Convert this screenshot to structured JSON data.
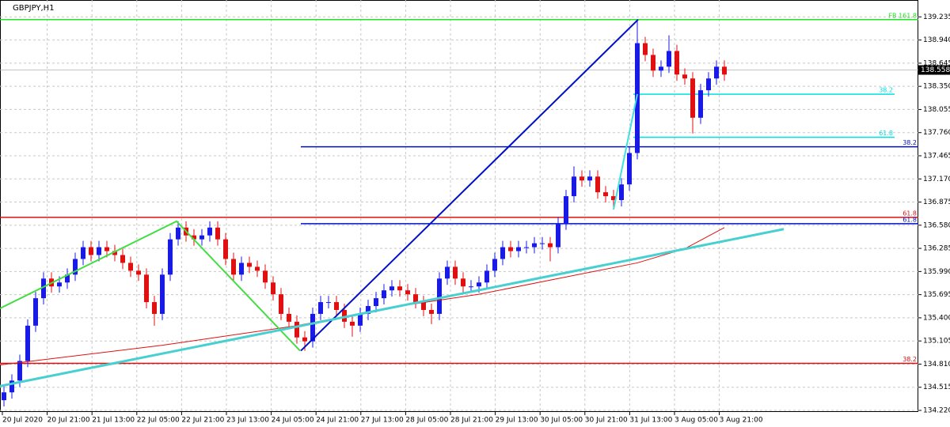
{
  "chart_data": {
    "type": "candlestick",
    "title": "GBPJPY,H1",
    "up_color": "#1a1ae6",
    "down_color": "#e01010",
    "ylim": [
      134.2,
      139.45
    ],
    "xlim": [
      -0.5,
      115.5
    ],
    "yticks": [
      139.235,
      {
        "value": 138.94,
        "label": "138.940"
      },
      138.645,
      {
        "value": 138.35,
        "label": "138.350"
      },
      138.055,
      {
        "value": 137.76,
        "label": "137.760"
      },
      137.465,
      {
        "value": 137.17,
        "label": "137.170"
      },
      136.875,
      {
        "value": 136.58,
        "label": "136.580"
      },
      136.285,
      {
        "value": 135.99,
        "label": "135.990"
      },
      135.695,
      {
        "value": 135.4,
        "label": "135.400"
      },
      135.105,
      {
        "value": 134.81,
        "label": "134.810"
      },
      134.515,
      {
        "value": 134.22,
        "label": "134.220"
      }
    ],
    "categories": [
      "20 Jul 2020",
      "20 Jul 21:00",
      "21 Jul 13:00",
      "22 Jul 05:00",
      "22 Jul 21:00",
      "23 Jul 13:00",
      "24 Jul 05:00",
      "24 Jul 21:00",
      "27 Jul 13:00",
      "28 Jul 05:00",
      "28 Jul 21:00",
      "29 Jul 13:00",
      "30 Jul 05:00",
      "30 Jul 21:00",
      "31 Jul 13:00",
      "3 Aug 05:00",
      "3 Aug 21:00"
    ],
    "grid": true,
    "open": [
      134.35,
      134.45,
      134.6,
      134.85,
      135.3,
      135.65,
      135.9,
      135.8,
      135.85,
      135.95,
      136.15,
      136.3,
      136.2,
      136.3,
      136.25,
      136.2,
      136.1,
      136.0,
      135.95,
      135.6,
      135.45,
      135.95,
      136.4,
      136.55,
      136.45,
      136.4,
      136.45,
      136.55,
      136.4,
      136.15,
      135.95,
      136.1,
      136.05,
      136.0,
      135.85,
      135.7,
      135.45,
      135.35,
      135.15,
      135.1,
      135.45,
      135.6,
      135.6,
      135.5,
      135.35,
      135.3,
      135.45,
      135.55,
      135.65,
      135.75,
      135.8,
      135.75,
      135.7,
      135.6,
      135.5,
      135.45,
      135.9,
      136.05,
      135.9,
      135.8,
      135.8,
      135.85,
      136.0,
      136.15,
      136.3,
      136.25,
      136.3,
      136.3,
      136.35,
      136.35,
      136.3,
      136.6,
      136.95,
      137.2,
      137.15,
      137.2,
      137.0,
      136.95,
      136.9,
      137.1,
      137.5,
      138.9,
      138.75,
      138.55,
      138.6,
      138.8,
      138.5,
      138.45,
      137.95,
      138.3,
      138.45,
      138.6
    ],
    "high": [
      134.53,
      134.68,
      134.93,
      135.38,
      135.73,
      135.98,
      135.98,
      135.93,
      136.03,
      136.23,
      136.38,
      136.38,
      136.38,
      136.38,
      136.33,
      136.28,
      136.18,
      136.08,
      136.03,
      135.68,
      136.03,
      136.48,
      136.63,
      136.63,
      136.53,
      136.53,
      136.63,
      136.63,
      136.48,
      136.23,
      136.18,
      136.18,
      136.13,
      136.08,
      135.93,
      135.78,
      135.53,
      135.43,
      135.23,
      135.53,
      135.68,
      135.68,
      135.68,
      135.58,
      135.43,
      135.53,
      135.63,
      135.73,
      135.83,
      135.88,
      135.88,
      135.83,
      135.78,
      135.68,
      135.58,
      135.98,
      136.13,
      136.13,
      135.98,
      135.88,
      135.93,
      136.08,
      136.23,
      136.38,
      136.38,
      136.38,
      136.38,
      136.43,
      136.43,
      136.43,
      136.68,
      137.03,
      137.33,
      137.28,
      137.28,
      137.28,
      137.08,
      137.03,
      137.18,
      137.58,
      139.2,
      138.98,
      138.83,
      138.68,
      139.0,
      138.88,
      138.58,
      138.53,
      138.38,
      138.53,
      138.68,
      138.68
    ],
    "low": [
      134.27,
      134.37,
      134.52,
      134.77,
      135.22,
      135.57,
      135.72,
      135.72,
      135.77,
      135.87,
      136.07,
      136.12,
      136.12,
      136.17,
      136.12,
      136.02,
      135.92,
      135.87,
      135.52,
      135.3,
      135.37,
      135.87,
      136.32,
      136.37,
      136.32,
      136.32,
      136.37,
      136.32,
      136.07,
      135.87,
      135.87,
      135.97,
      135.92,
      135.77,
      135.62,
      135.37,
      135.27,
      135.07,
      134.98,
      135.02,
      135.37,
      135.52,
      135.42,
      135.27,
      135.16,
      135.22,
      135.37,
      135.47,
      135.57,
      135.67,
      135.67,
      135.62,
      135.52,
      135.42,
      135.32,
      135.37,
      135.82,
      135.82,
      135.72,
      135.72,
      135.72,
      135.77,
      135.92,
      136.07,
      136.17,
      136.17,
      136.22,
      136.22,
      136.27,
      136.12,
      136.22,
      136.52,
      136.87,
      137.07,
      137.07,
      136.92,
      136.87,
      136.78,
      136.82,
      137.02,
      137.42,
      138.67,
      138.47,
      138.47,
      138.52,
      138.42,
      138.37,
      137.75,
      137.87,
      138.22,
      138.37,
      138.42
    ],
    "close": [
      134.45,
      134.6,
      134.85,
      135.3,
      135.65,
      135.9,
      135.8,
      135.85,
      135.95,
      136.15,
      136.3,
      136.2,
      136.3,
      136.25,
      136.2,
      136.1,
      136.0,
      135.95,
      135.6,
      135.45,
      135.95,
      136.4,
      136.55,
      136.45,
      136.4,
      136.45,
      136.55,
      136.4,
      136.15,
      135.95,
      136.1,
      136.05,
      136.0,
      135.85,
      135.7,
      135.45,
      135.35,
      135.15,
      135.1,
      135.45,
      135.6,
      135.6,
      135.5,
      135.35,
      135.3,
      135.45,
      135.55,
      135.65,
      135.75,
      135.8,
      135.75,
      135.7,
      135.6,
      135.5,
      135.45,
      135.9,
      136.05,
      135.9,
      135.8,
      135.8,
      135.85,
      136.0,
      136.15,
      136.3,
      136.25,
      136.3,
      136.3,
      136.35,
      136.35,
      136.3,
      136.6,
      136.95,
      137.2,
      137.15,
      137.2,
      137.0,
      136.95,
      136.9,
      137.1,
      137.5,
      138.9,
      138.75,
      138.55,
      138.6,
      138.8,
      138.5,
      138.45,
      137.95,
      138.3,
      138.45,
      138.6,
      138.5
    ],
    "current_price": 138.558,
    "levels": [
      {
        "label": "FB 161.8",
        "color": "#22e022",
        "price": 139.2,
        "from": -0.5,
        "to": 115.5
      },
      {
        "label": "38.2",
        "color": "#00e0e0",
        "price": 138.25,
        "from": 79.5,
        "to": 112.5
      },
      {
        "label": "61.8",
        "color": "#00e0e0",
        "price": 137.7,
        "from": 79.5,
        "to": 112.5
      },
      {
        "label": "38.2",
        "color": "#0010c8",
        "price": 137.58,
        "from": 37.5,
        "to": 115.5
      },
      {
        "label": "61.8",
        "color": "#e01010",
        "price": 136.68,
        "from": -0.5,
        "to": 115.5
      },
      {
        "label": "61.8",
        "color": "#0010c8",
        "price": 136.6,
        "from": 37.5,
        "to": 115.5
      },
      {
        "label": "38.2",
        "color": "#e01010",
        "price": 134.82,
        "from": -0.5,
        "to": 115.5
      }
    ],
    "trendlines": [
      {
        "color": "#e01010",
        "width": 1,
        "points": [
          [
            -0.5,
            134.8
          ],
          [
            20,
            135.05
          ],
          [
            37,
            135.3
          ],
          [
            50,
            135.55
          ],
          [
            60,
            135.7
          ],
          [
            70,
            135.9
          ],
          [
            80,
            136.1
          ],
          [
            86,
            136.28
          ],
          [
            91,
            136.55
          ]
        ]
      },
      {
        "color": "#44dd44",
        "width": 2,
        "points": [
          [
            -0.5,
            135.52
          ],
          [
            21.8,
            136.63
          ],
          [
            37.4,
            134.98
          ]
        ]
      },
      {
        "color": "#0010c8",
        "width": 2,
        "points": [
          [
            37.5,
            134.98
          ],
          [
            80.1,
            139.2
          ]
        ]
      },
      {
        "color": "#40e0e0",
        "width": 2,
        "points": [
          [
            77,
            136.78
          ],
          [
            80,
            138.25
          ]
        ]
      },
      {
        "color": "#48d0d0",
        "width": 3,
        "points": [
          [
            -0.5,
            134.53
          ],
          [
            98.5,
            136.53
          ]
        ]
      }
    ]
  }
}
